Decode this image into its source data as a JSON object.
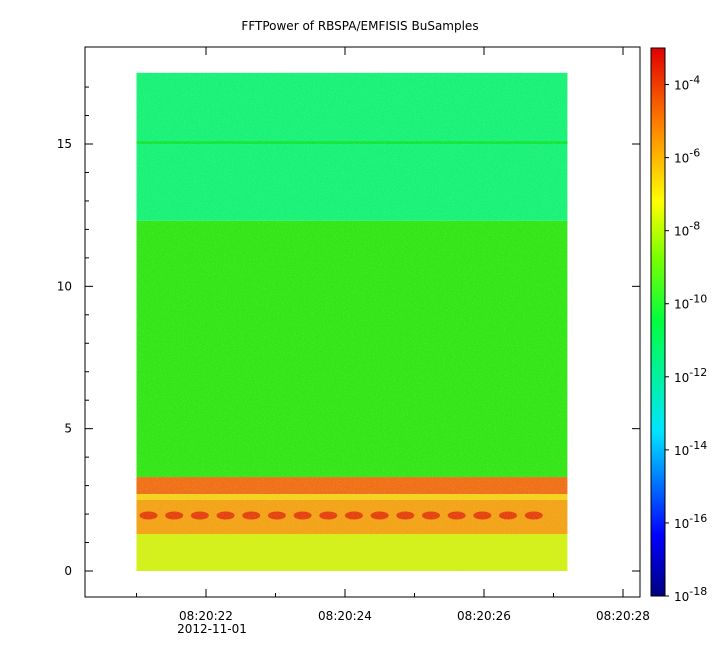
{
  "chart_data": {
    "type": "heatmap",
    "title": "FFTPower of RBSPA/EMFISIS  BuSamples",
    "xlabel": "",
    "ylabel": "",
    "x_ticks": [
      {
        "value": 22,
        "label": "08:20:22"
      },
      {
        "value": 24,
        "label": "08:20:24"
      },
      {
        "value": 26,
        "label": "08:20:26"
      },
      {
        "value": 28,
        "label": "08:20:28"
      }
    ],
    "x_date_label": "2012-11-01",
    "xlim": [
      20,
      28.2
    ],
    "y_ticks": [
      0,
      5,
      10,
      15
    ],
    "ylim": [
      -1,
      18
    ],
    "data_extent": {
      "x": [
        21.0,
        27.2
      ],
      "y": [
        0,
        17.5
      ]
    },
    "colorbar": {
      "scale": "log",
      "range_exponent": [
        -18,
        -3
      ],
      "tick_exponents": [
        -4,
        -6,
        -8,
        -10,
        -12,
        -14,
        -16,
        -18
      ],
      "base_label": "10"
    },
    "bands": [
      {
        "y": [
          12.3,
          17.5
        ],
        "level": "1e-12",
        "color": "#19f27a"
      },
      {
        "y": [
          15.0,
          15.1
        ],
        "level": "1e-11",
        "color": "#16e53a"
      },
      {
        "y": [
          3.3,
          12.3
        ],
        "level": "1e-10",
        "color": "#33e61a"
      },
      {
        "y": [
          2.7,
          3.3
        ],
        "level": "1e-6",
        "color": "#f0701a"
      },
      {
        "y": [
          2.5,
          2.7
        ],
        "level": "1e-8",
        "color": "#f6d21a"
      },
      {
        "y": [
          1.3,
          2.5
        ],
        "level": "1e-6",
        "color": "#f3a31a"
      },
      {
        "y": [
          0,
          1.3
        ],
        "level": "1e-8",
        "color": "#d3f01a"
      }
    ]
  }
}
